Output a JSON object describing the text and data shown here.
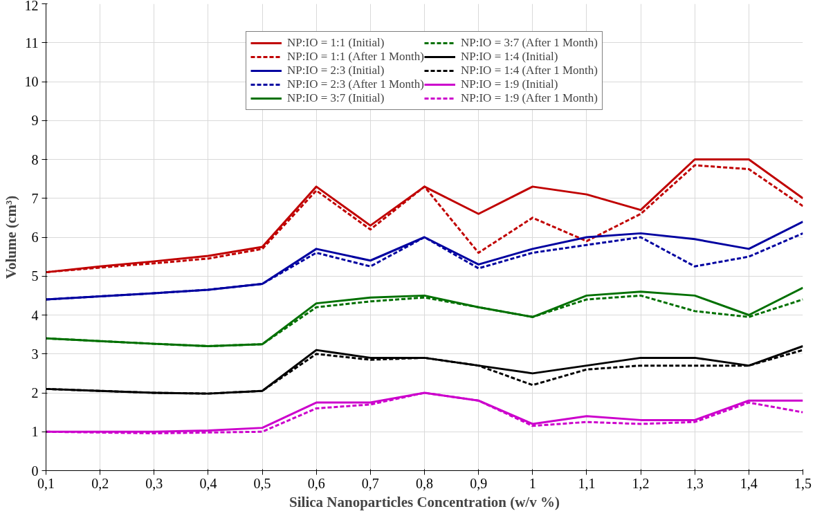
{
  "chart_data": {
    "type": "line",
    "xlabel": "Silica Nanoparticles Concentration (w/v %)",
    "ylabel": "Volume (cm³)",
    "x": [
      0.1,
      0.2,
      0.3,
      0.4,
      0.5,
      0.6,
      0.7,
      0.8,
      0.9,
      1.0,
      1.1,
      1.2,
      1.3,
      1.4,
      1.5
    ],
    "xlim": [
      0.1,
      1.5
    ],
    "xticks": [
      {
        "value": 0.1,
        "label": "0,1"
      },
      {
        "value": 0.2,
        "label": "0,2"
      },
      {
        "value": 0.3,
        "label": "0,3"
      },
      {
        "value": 0.4,
        "label": "0,4"
      },
      {
        "value": 0.5,
        "label": "0,5"
      },
      {
        "value": 0.6,
        "label": "0,6"
      },
      {
        "value": 0.7,
        "label": "0,7"
      },
      {
        "value": 0.8,
        "label": "0,8"
      },
      {
        "value": 0.9,
        "label": "0,9"
      },
      1,
      {
        "value": 1.1,
        "label": "1,1"
      },
      {
        "value": 1.2,
        "label": "1,2"
      },
      {
        "value": 1.3,
        "label": "1,3"
      },
      {
        "value": 1.4,
        "label": "1,4"
      },
      {
        "value": 1.5,
        "label": "1,5"
      }
    ],
    "ylim": [
      0,
      12
    ],
    "yticks": [
      0,
      1,
      2,
      3,
      4,
      5,
      6,
      7,
      8,
      9,
      10,
      11,
      12
    ],
    "grid": true,
    "legend": "top",
    "marker": "none",
    "series": [
      {
        "name": "NP:IO = 1:1 (Initial)",
        "color": "#c00000",
        "line_style": "solid",
        "values": [
          5.1,
          5.25,
          5.38,
          5.52,
          5.75,
          7.3,
          6.3,
          7.3,
          6.6,
          7.3,
          7.1,
          6.7,
          8.0,
          8.0,
          7.0
        ]
      },
      {
        "name": "NP:IO = 1:1 (After 1 Month)",
        "color": "#c00000",
        "line_style": "dashed",
        "values": [
          5.1,
          5.22,
          5.33,
          5.45,
          5.7,
          7.2,
          6.2,
          7.3,
          5.6,
          6.5,
          5.9,
          6.6,
          7.85,
          7.75,
          6.8
        ]
      },
      {
        "name": "NP:IO = 2:3 (Initial)",
        "color": "#0000a0",
        "line_style": "solid",
        "values": [
          4.4,
          4.48,
          4.56,
          4.65,
          4.8,
          5.7,
          5.4,
          6.0,
          5.3,
          5.7,
          6.0,
          6.1,
          5.95,
          5.7,
          6.4
        ]
      },
      {
        "name": "NP:IO = 2:3 (After 1 Month)",
        "color": "#0000a0",
        "line_style": "dashed",
        "values": [
          4.4,
          4.48,
          4.56,
          4.65,
          4.8,
          5.6,
          5.25,
          6.0,
          5.2,
          5.6,
          5.8,
          6.0,
          5.25,
          5.5,
          6.1
        ]
      },
      {
        "name": "NP:IO = 3:7 (Initial)",
        "color": "#007000",
        "line_style": "solid",
        "values": [
          3.4,
          3.33,
          3.26,
          3.2,
          3.25,
          4.3,
          4.45,
          4.5,
          4.2,
          3.95,
          4.5,
          4.6,
          4.5,
          4.0,
          4.7
        ]
      },
      {
        "name": "NP:IO = 3:7 (After 1 Month)",
        "color": "#007000",
        "line_style": "dashed",
        "values": [
          3.4,
          3.33,
          3.26,
          3.2,
          3.25,
          4.2,
          4.35,
          4.45,
          4.2,
          3.95,
          4.4,
          4.5,
          4.1,
          3.95,
          4.4
        ]
      },
      {
        "name": "NP:IO = 1:4 (Initial)",
        "color": "#000000",
        "line_style": "solid",
        "values": [
          2.1,
          2.05,
          2.0,
          1.98,
          2.05,
          3.1,
          2.9,
          2.9,
          2.7,
          2.5,
          2.7,
          2.9,
          2.9,
          2.7,
          3.2
        ]
      },
      {
        "name": "NP:IO = 1:4 (After 1 Month)",
        "color": "#000000",
        "line_style": "dashed",
        "values": [
          2.1,
          2.05,
          2.0,
          1.98,
          2.05,
          3.0,
          2.85,
          2.9,
          2.7,
          2.2,
          2.6,
          2.7,
          2.7,
          2.7,
          3.1
        ]
      },
      {
        "name": "NP:IO = 1:9 (Initial)",
        "color": "#cc00cc",
        "line_style": "solid",
        "values": [
          1.0,
          1.0,
          1.0,
          1.03,
          1.1,
          1.75,
          1.75,
          2.0,
          1.8,
          1.2,
          1.4,
          1.3,
          1.3,
          1.8,
          1.8
        ]
      },
      {
        "name": "NP:IO = 1:9 (After 1 Month)",
        "color": "#cc00cc",
        "line_style": "dashed",
        "values": [
          1.0,
          0.98,
          0.96,
          0.98,
          1.0,
          1.6,
          1.7,
          2.0,
          1.8,
          1.15,
          1.25,
          1.2,
          1.25,
          1.75,
          1.5
        ]
      }
    ]
  }
}
